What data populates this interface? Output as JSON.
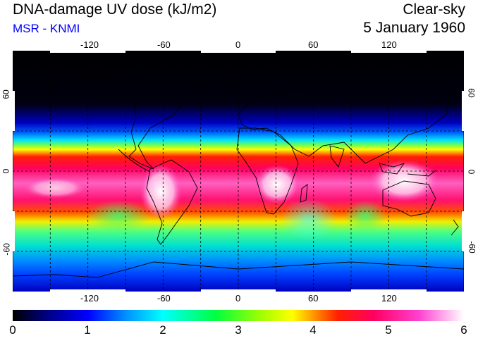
{
  "header": {
    "title": "DNA-damage UV dose (kJ/m2)",
    "source": "MSR - KNMI",
    "mode": "Clear-sky",
    "date": "5 January 1960"
  },
  "map": {
    "projection": "equirectangular",
    "lon_range": [
      -180,
      180
    ],
    "lat_range": [
      -90,
      90
    ],
    "lon_ticks": [
      "-120",
      "-60",
      "0",
      "60",
      "120"
    ],
    "lat_ticks": [
      "60",
      "0",
      "-60"
    ],
    "grid": "dashed, every 30 degrees"
  },
  "colorbar": {
    "labels": [
      "0",
      "1",
      "2",
      "3",
      "4",
      "5",
      "6"
    ],
    "min": 0,
    "max": 6,
    "unit": "kJ/m2",
    "stops": [
      "#000000",
      "#0000ff",
      "#00ffff",
      "#00ff00",
      "#ffff00",
      "#ff0000",
      "#ff00ff",
      "#ffffff"
    ]
  },
  "colors": {
    "source_text": "#0000ff",
    "coastline": "#000000"
  }
}
